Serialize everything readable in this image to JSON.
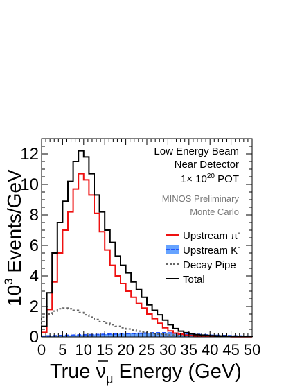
{
  "chart_data": {
    "type": "step-histogram",
    "xlabel_parts": {
      "pre": "True ",
      "nu": "ν",
      "sub": "μ",
      "post": " Energy (GeV)"
    },
    "ylabel_parts": {
      "base": "10",
      "exp": "3",
      "text": " Events/GeV"
    },
    "xlim": [
      0,
      50
    ],
    "ylim": [
      0,
      13
    ],
    "x_ticks": [
      "0",
      "5",
      "10",
      "15",
      "20",
      "25",
      "30",
      "35",
      "40",
      "45",
      "50"
    ],
    "y_ticks": [
      "0",
      "2",
      "4",
      "6",
      "8",
      "10",
      "12"
    ],
    "bin_width": 1.25,
    "series": [
      {
        "name": "Total",
        "color": "#000000",
        "style": "solid",
        "values": [
          0.7,
          2.9,
          5.5,
          7.5,
          8.9,
          10.2,
          11.5,
          12.2,
          11.8,
          10.7,
          9.3,
          8.2,
          7.0,
          6.2,
          5.3,
          4.7,
          4.2,
          3.6,
          3.1,
          2.6,
          2.1,
          1.75,
          1.45,
          1.1,
          0.8,
          0.55,
          0.38,
          0.28,
          0.2,
          0.15,
          0.12,
          0.1,
          0.08,
          0.07,
          0.06,
          0.05,
          0.05,
          0.04,
          0.04,
          0.04
        ]
      },
      {
        "name": "Upstream π⁻",
        "color": "#ee1111",
        "style": "solid",
        "values": [
          0.3,
          1.8,
          3.6,
          5.5,
          7.0,
          8.2,
          9.7,
          10.7,
          10.3,
          9.3,
          8.1,
          6.9,
          5.7,
          4.7,
          4.0,
          3.5,
          3.0,
          2.6,
          2.2,
          1.9,
          1.5,
          1.2,
          0.9,
          0.6,
          0.4,
          0.25,
          0.18,
          0.12,
          0.09,
          0.07,
          0.05,
          0.04,
          0.03,
          0.02,
          0.02,
          0.02,
          0.01,
          0.01,
          0.01,
          0.01
        ]
      },
      {
        "name": "Upstream K⁻",
        "color": "#2255ff",
        "fill": "#66a3ff",
        "style": "dashed",
        "values": [
          0.05,
          0.07,
          0.08,
          0.09,
          0.1,
          0.11,
          0.12,
          0.13,
          0.14,
          0.15,
          0.16,
          0.17,
          0.18,
          0.19,
          0.2,
          0.21,
          0.22,
          0.23,
          0.24,
          0.25,
          0.26,
          0.27,
          0.27,
          0.27,
          0.26,
          0.25,
          0.23,
          0.21,
          0.19,
          0.17,
          0.15,
          0.13,
          0.11,
          0.1,
          0.09,
          0.08,
          0.07,
          0.06,
          0.05,
          0.05
        ]
      },
      {
        "name": "Decay Pipe",
        "color": "#666666",
        "style": "dotted",
        "values": [
          1.3,
          1.5,
          1.7,
          1.85,
          1.9,
          1.85,
          1.75,
          1.6,
          1.45,
          1.3,
          1.15,
          1.0,
          0.9,
          0.8,
          0.7,
          0.6,
          0.52,
          0.45,
          0.38,
          0.32,
          0.27,
          0.22,
          0.19,
          0.16,
          0.13,
          0.11,
          0.09,
          0.08,
          0.07,
          0.06,
          0.05,
          0.04,
          0.04,
          0.03,
          0.03,
          0.03,
          0.02,
          0.02,
          0.02,
          0.02
        ]
      }
    ],
    "legend": [
      {
        "label": "Upstream π",
        "sup": "-"
      },
      {
        "label": "Upstream K",
        "sup": "-"
      },
      {
        "label": "Decay Pipe",
        "sup": ""
      },
      {
        "label": "Total",
        "sup": ""
      }
    ],
    "legend_placement": "right",
    "grid": false,
    "annotations": {
      "line1": "Low Energy Beam",
      "line2": "Near Detector",
      "pot_base": "1× 10",
      "pot_exp": "20",
      "pot_unit": " POT",
      "minos": "MINOS Preliminary",
      "mc": "Monte Carlo"
    }
  }
}
